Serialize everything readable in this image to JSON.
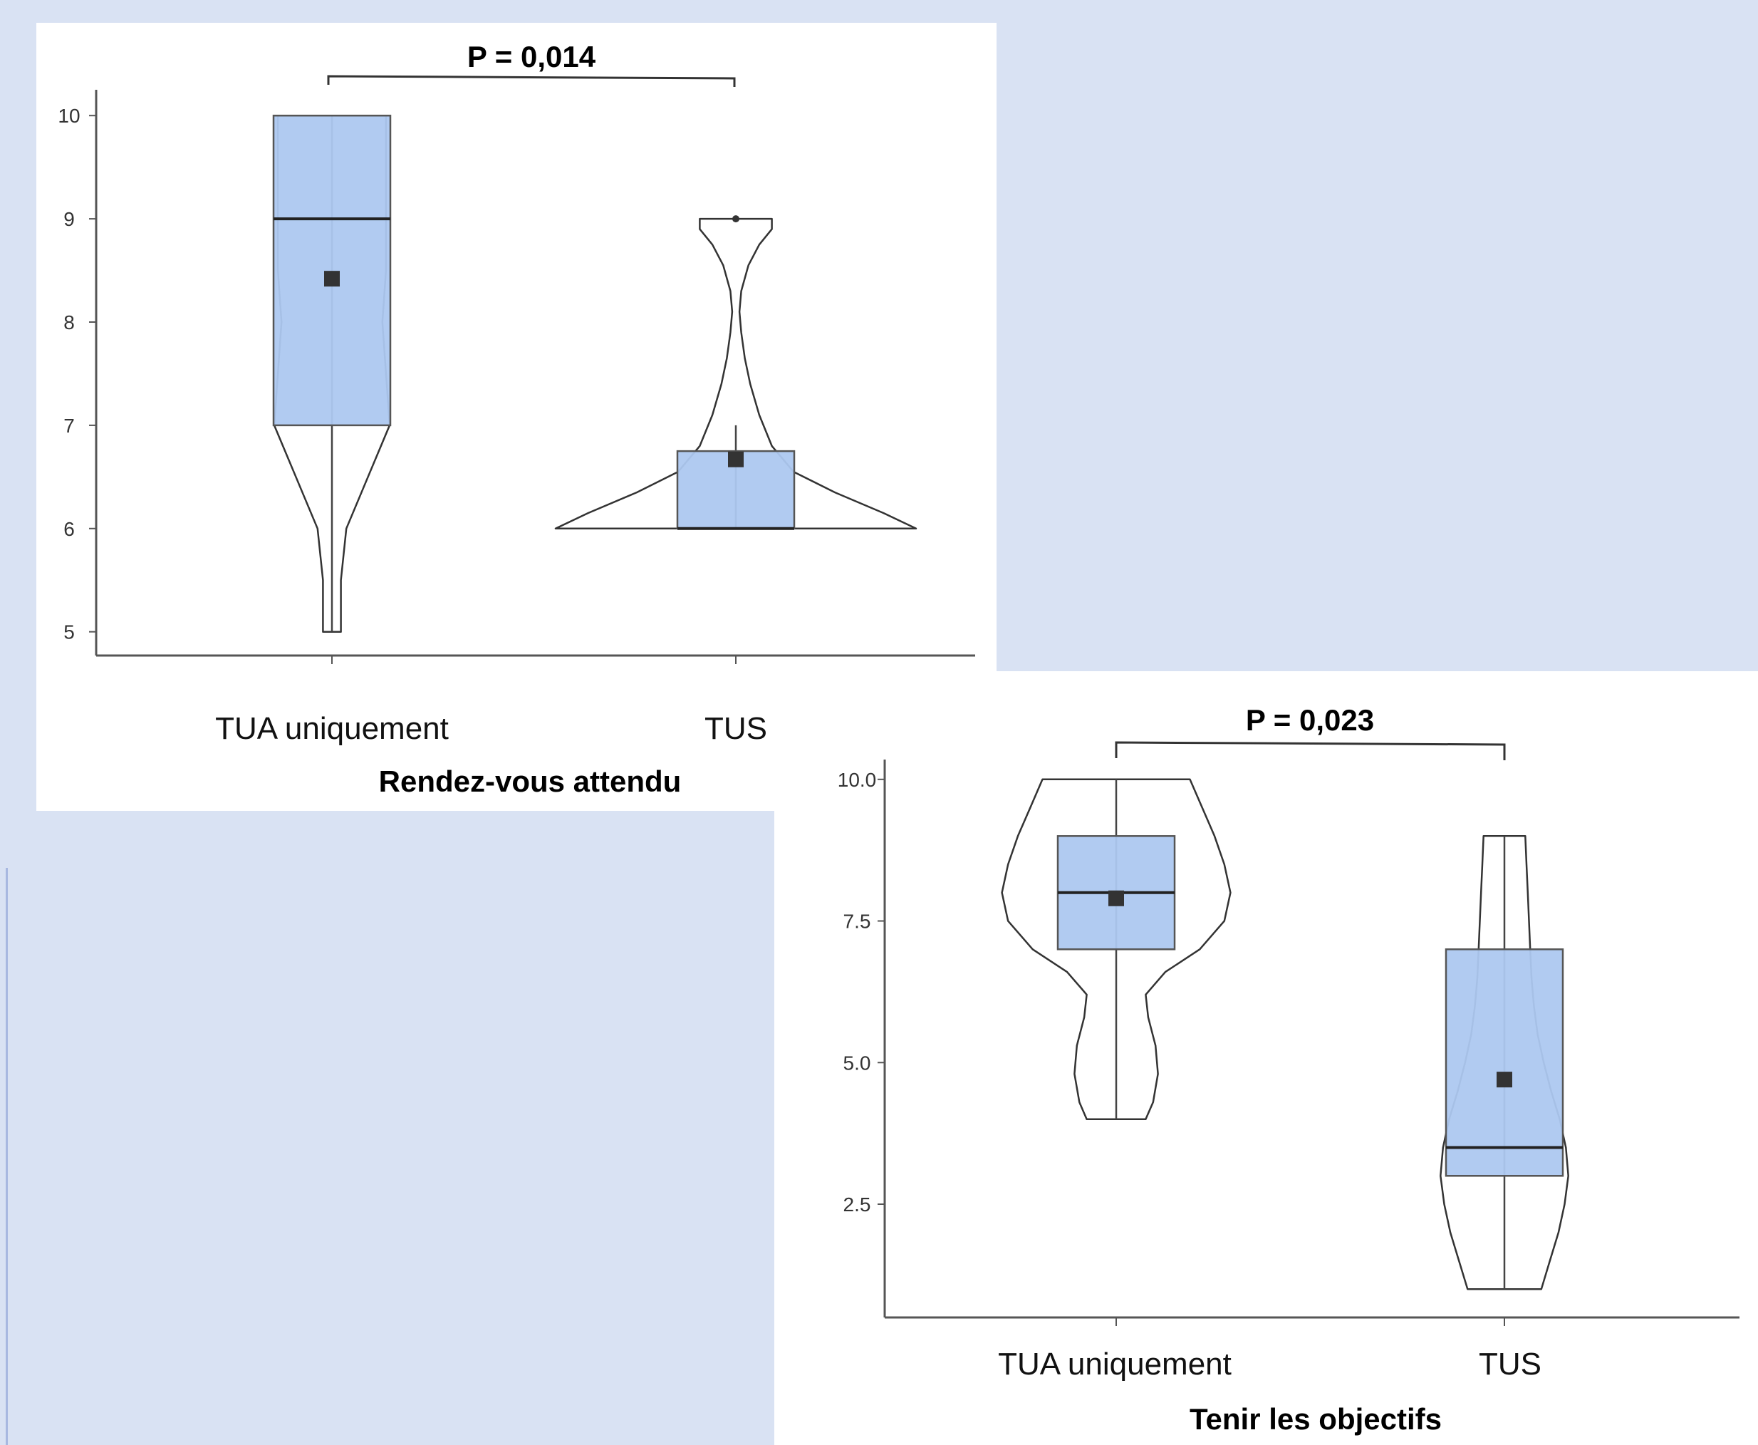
{
  "colors": {
    "background": "#d9e2f3",
    "box_fill": "#adc8f0",
    "box_stroke": "#555555",
    "violin_stroke": "#333333",
    "mean_marker": "#333333"
  },
  "chart_data": [
    {
      "type": "box-violin",
      "title": "Rendez-vous attendu",
      "p_value": "P = 0,014",
      "categories": [
        "TUA uniquement",
        "TUS"
      ],
      "ylim": [
        4.77,
        10.25
      ],
      "yticks": [
        5,
        6,
        7,
        8,
        9,
        10
      ],
      "ytick_labels": [
        "5",
        "6",
        "7",
        "8",
        "9",
        "10"
      ],
      "grid": false,
      "groups": [
        {
          "name": "TUA uniquement",
          "min": 5,
          "q1": 7,
          "median": 9,
          "q3": 10,
          "max": 10,
          "mean": 8.42,
          "outliers": [],
          "violin": [
            [
              5.0,
              0.05
            ],
            [
              5.5,
              0.05
            ],
            [
              6.0,
              0.08
            ],
            [
              6.5,
              0.2
            ],
            [
              7.0,
              0.32
            ],
            [
              7.5,
              0.3
            ],
            [
              8.0,
              0.28
            ],
            [
              8.5,
              0.3
            ],
            [
              9.0,
              0.3
            ],
            [
              9.5,
              0.3
            ],
            [
              10.0,
              0.3
            ]
          ]
        },
        {
          "name": "TUS",
          "min": 6,
          "q1": 6,
          "median": 6,
          "q3": 6.75,
          "max": 7,
          "mean": 6.67,
          "outliers": [
            9
          ],
          "violin": [
            [
              6.0,
              1.0
            ],
            [
              6.15,
              0.82
            ],
            [
              6.35,
              0.55
            ],
            [
              6.55,
              0.32
            ],
            [
              6.8,
              0.2
            ],
            [
              7.1,
              0.13
            ],
            [
              7.4,
              0.08
            ],
            [
              7.65,
              0.05
            ],
            [
              7.9,
              0.03
            ],
            [
              8.1,
              0.02
            ],
            [
              8.3,
              0.03
            ],
            [
              8.55,
              0.07
            ],
            [
              8.75,
              0.13
            ],
            [
              8.9,
              0.2
            ],
            [
              9.0,
              0.2
            ]
          ]
        }
      ]
    },
    {
      "type": "box-violin",
      "title": "Tenir les objectifs",
      "p_value": "P = 0,023",
      "categories": [
        "TUA uniquement",
        "TUS"
      ],
      "ylim": [
        0.5,
        10.35
      ],
      "yticks": [
        2.5,
        5.0,
        7.5,
        10.0
      ],
      "ytick_labels": [
        "2.5",
        "5.0",
        "7.5",
        "10.0"
      ],
      "grid": false,
      "groups": [
        {
          "name": "TUA uniquement",
          "min": 4,
          "q1": 7,
          "median": 8,
          "q3": 9,
          "max": 10,
          "mean": 7.9,
          "outliers": [],
          "violin": [
            [
              4.0,
              0.24
            ],
            [
              4.3,
              0.3
            ],
            [
              4.8,
              0.34
            ],
            [
              5.3,
              0.32
            ],
            [
              5.8,
              0.26
            ],
            [
              6.2,
              0.24
            ],
            [
              6.6,
              0.4
            ],
            [
              7.0,
              0.68
            ],
            [
              7.5,
              0.88
            ],
            [
              8.0,
              0.93
            ],
            [
              8.5,
              0.88
            ],
            [
              9.0,
              0.8
            ],
            [
              9.5,
              0.7
            ],
            [
              10.0,
              0.6
            ]
          ]
        },
        {
          "name": "TUS",
          "min": 1,
          "q1": 3,
          "median": 3.5,
          "q3": 7,
          "max": 9,
          "mean": 4.7,
          "outliers": [],
          "violin": [
            [
              1.0,
              0.3
            ],
            [
              1.5,
              0.37
            ],
            [
              2.0,
              0.44
            ],
            [
              2.5,
              0.49
            ],
            [
              3.0,
              0.52
            ],
            [
              3.5,
              0.5
            ],
            [
              4.0,
              0.45
            ],
            [
              4.5,
              0.38
            ],
            [
              5.0,
              0.32
            ],
            [
              5.5,
              0.27
            ],
            [
              6.0,
              0.24
            ],
            [
              6.5,
              0.22
            ],
            [
              7.0,
              0.21
            ],
            [
              7.5,
              0.2
            ],
            [
              8.0,
              0.19
            ],
            [
              8.5,
              0.18
            ],
            [
              9.0,
              0.17
            ]
          ]
        }
      ]
    }
  ]
}
